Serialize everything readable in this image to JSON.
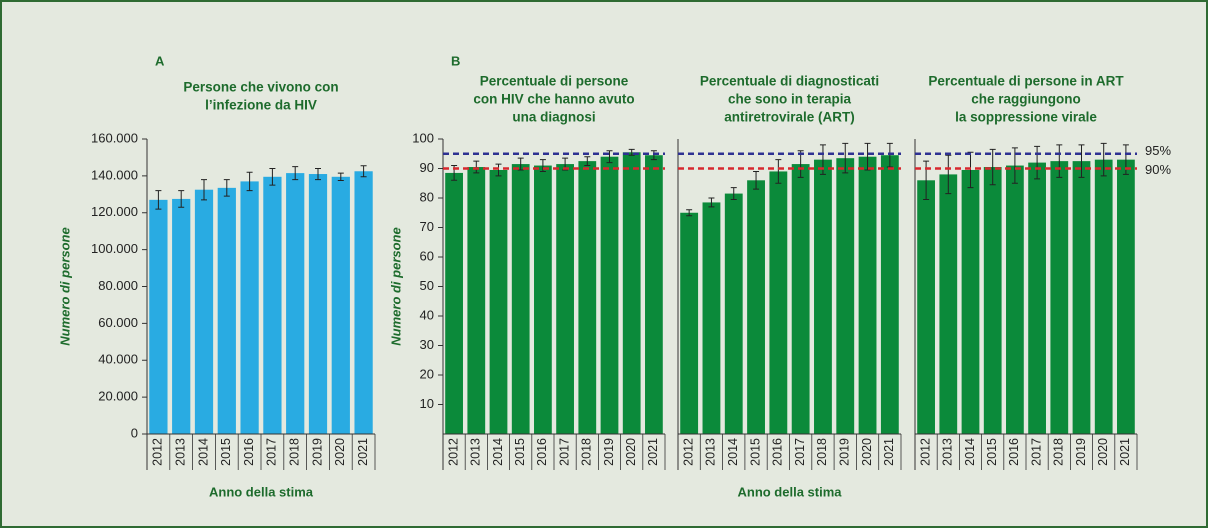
{
  "chart_data": [
    {
      "type": "bar",
      "panel": "A",
      "title": [
        "Persone che vivono con",
        "l’infezione da HIV"
      ],
      "ylabel": "Numero di persone",
      "xlabel": "Anno della stima",
      "categories": [
        "2012",
        "2013",
        "2014",
        "2015",
        "2016",
        "2017",
        "2018",
        "2019",
        "2020",
        "2021"
      ],
      "values": [
        127000,
        127500,
        132500,
        133500,
        137000,
        139500,
        141500,
        141000,
        139500,
        142500
      ],
      "errors": [
        5000,
        4500,
        5500,
        4500,
        5000,
        4500,
        3500,
        3000,
        2000,
        3000
      ],
      "color": "#29abe2",
      "ylim": [
        0,
        160000
      ],
      "yticks": [
        0,
        {
          "value": 20000,
          "label": "20.000"
        },
        {
          "value": 40000,
          "label": "40.000"
        },
        {
          "value": 60000,
          "label": "60.000"
        },
        {
          "value": 80000,
          "label": "80.000"
        },
        {
          "value": 100000,
          "label": "100.000"
        },
        {
          "value": 120000,
          "label": "120.000"
        },
        {
          "value": 140000,
          "label": "140.000"
        },
        {
          "value": 160000,
          "label": "160.000"
        }
      ]
    },
    {
      "type": "bar",
      "panel": "B",
      "title": [
        "Percentuale di persone",
        "con HIV che hanno avuto",
        "una diagnosi"
      ],
      "ylabel": "Numero di persone",
      "categories": [
        "2012",
        "2013",
        "2014",
        "2015",
        "2016",
        "2017",
        "2018",
        "2019",
        "2020",
        "2021"
      ],
      "values": [
        88.5,
        90.5,
        89.5,
        91.5,
        91,
        91.5,
        92.5,
        94,
        95.5,
        94.5
      ],
      "errors": [
        2.5,
        2,
        2,
        2,
        2,
        2,
        1.5,
        2,
        1,
        1.5
      ],
      "color": "#0b8a3a",
      "ylim": [
        0,
        100
      ],
      "yticks": [
        10,
        20,
        30,
        40,
        50,
        60,
        70,
        80,
        90,
        100
      ],
      "reference_lines": [
        {
          "value": 95,
          "color": "#2e3192"
        },
        {
          "value": 90,
          "color": "#d7282f"
        }
      ]
    },
    {
      "type": "bar",
      "title": [
        "Percentuale di diagnosticati",
        "che sono in terapia",
        "antiretrovirale (ART)"
      ],
      "xlabel": "Anno della stima",
      "categories": [
        "2012",
        "2013",
        "2014",
        "2015",
        "2016",
        "2017",
        "2018",
        "2019",
        "2020",
        "2021"
      ],
      "values": [
        75,
        78.5,
        81.5,
        86,
        89,
        91.5,
        93,
        93.5,
        94,
        94.5
      ],
      "errors": [
        1,
        1.5,
        2,
        3,
        4,
        4.5,
        5,
        5,
        4.5,
        4
      ],
      "color": "#0b8a3a",
      "ylim": [
        0,
        100
      ],
      "reference_lines": [
        {
          "value": 95,
          "color": "#2e3192"
        },
        {
          "value": 90,
          "color": "#d7282f"
        }
      ]
    },
    {
      "type": "bar",
      "title": [
        "Percentuale di persone in ART",
        "che raggiungono",
        "la soppressione virale"
      ],
      "categories": [
        "2012",
        "2013",
        "2014",
        "2015",
        "2016",
        "2017",
        "2018",
        "2019",
        "2020",
        "2021"
      ],
      "values": [
        86,
        88,
        89.5,
        90.5,
        91,
        92,
        92.5,
        92.5,
        93,
        93
      ],
      "errors": [
        6.5,
        6.5,
        6,
        6,
        6,
        5.5,
        5.5,
        5.5,
        5.5,
        5
      ],
      "color": "#0b8a3a",
      "ylim": [
        0,
        100
      ],
      "reference_lines": [
        {
          "value": 95,
          "color": "#2e3192",
          "label": "95%"
        },
        {
          "value": 90,
          "color": "#d7282f",
          "label": "90%"
        }
      ]
    }
  ]
}
